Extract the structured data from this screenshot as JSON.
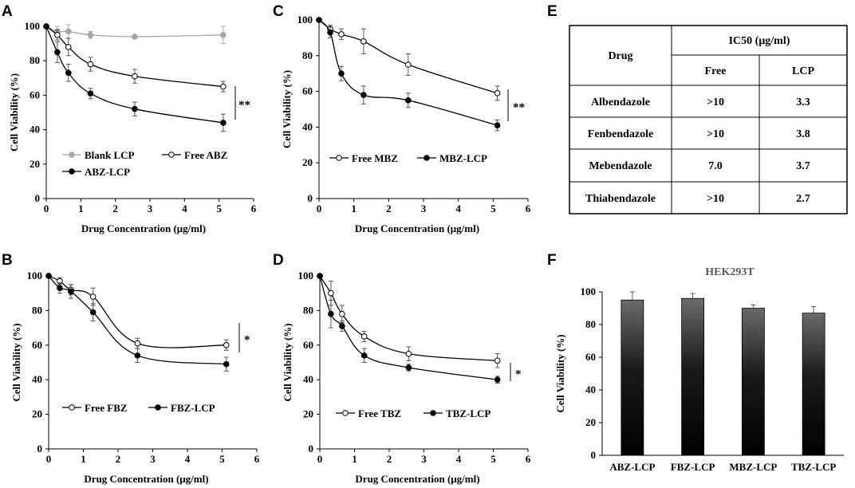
{
  "panel_letters": {
    "A": "A",
    "B": "B",
    "C": "C",
    "D": "D",
    "E": "E",
    "F": "F"
  },
  "colors": {
    "free": "#ffffff",
    "lcp": "#000000",
    "blank": "#a6a6a6",
    "axis": "#000000",
    "table_border": "#000000"
  },
  "chart_data": [
    {
      "id": "A",
      "type": "line",
      "xlabel": "Drug Concentration  (μg/ml)",
      "ylabel": "Cell Viability  (%)",
      "xlim": [
        0,
        6
      ],
      "ylim": [
        0,
        100
      ],
      "xticks": [
        "0",
        "1",
        "2",
        "3",
        "4",
        "5",
        "6"
      ],
      "yticks": [
        "0",
        "20",
        "40",
        "60",
        "80",
        "100"
      ],
      "series": [
        {
          "name": "Blank LCP",
          "style": "blank",
          "x": [
            0,
            0.32,
            0.64,
            1.28,
            2.56,
            5.12
          ],
          "values": [
            100,
            97,
            97,
            95,
            94,
            95
          ],
          "errors": [
            0,
            3,
            4,
            2,
            1,
            5
          ]
        },
        {
          "name": "Free ABZ",
          "style": "free",
          "x": [
            0,
            0.32,
            0.64,
            1.28,
            2.56,
            5.12
          ],
          "values": [
            100,
            95,
            88,
            78,
            71,
            65
          ],
          "errors": [
            0,
            3,
            5,
            4,
            4,
            3
          ]
        },
        {
          "name": "ABZ-LCP",
          "style": "lcp",
          "x": [
            0,
            0.32,
            0.64,
            1.28,
            2.56,
            5.12
          ],
          "values": [
            100,
            85,
            73,
            61,
            52,
            44
          ],
          "errors": [
            0,
            6,
            5,
            3,
            4,
            5
          ]
        }
      ],
      "legend": {
        "items": [
          "Blank LCP",
          "Free ABZ",
          "ABZ-LCP"
        ]
      },
      "significance": "**"
    },
    {
      "id": "B",
      "type": "line",
      "xlabel": "Drug Concentration  (μg/ml)",
      "ylabel": "Cell Viability  (%)",
      "xlim": [
        0,
        6
      ],
      "ylim": [
        0,
        100
      ],
      "xticks": [
        "0",
        "1",
        "2",
        "3",
        "4",
        "5",
        "6"
      ],
      "yticks": [
        "0",
        "20",
        "40",
        "60",
        "80",
        "100"
      ],
      "series": [
        {
          "name": "Free FBZ",
          "style": "free",
          "x": [
            0,
            0.32,
            0.64,
            1.28,
            2.56,
            5.12
          ],
          "values": [
            100,
            97,
            92,
            88,
            61,
            60
          ],
          "errors": [
            0,
            2,
            3,
            5,
            3,
            3
          ]
        },
        {
          "name": "FBZ-LCP",
          "style": "lcp",
          "x": [
            0,
            0.32,
            0.64,
            1.28,
            2.56,
            5.12
          ],
          "values": [
            100,
            93,
            91,
            79,
            54,
            49
          ],
          "errors": [
            0,
            3,
            4,
            5,
            4,
            4
          ]
        }
      ],
      "legend": {
        "items": [
          "Free FBZ",
          "FBZ-LCP"
        ]
      },
      "significance": "*"
    },
    {
      "id": "C",
      "type": "line",
      "xlabel": "Drug Concentration  (μg/ml)",
      "ylabel": "Cell Viability  (%)",
      "xlim": [
        0,
        6
      ],
      "ylim": [
        0,
        100
      ],
      "xticks": [
        "0",
        "1",
        "2",
        "3",
        "4",
        "5",
        "6"
      ],
      "yticks": [
        "0",
        "20",
        "40",
        "60",
        "80",
        "100"
      ],
      "series": [
        {
          "name": "Free MBZ",
          "style": "free",
          "x": [
            0,
            0.32,
            0.64,
            1.28,
            2.56,
            5.12
          ],
          "values": [
            100,
            95,
            92,
            88,
            75,
            59
          ],
          "errors": [
            0,
            2,
            3,
            7,
            6,
            4
          ]
        },
        {
          "name": "MBZ-LCP",
          "style": "lcp",
          "x": [
            0,
            0.32,
            0.64,
            1.28,
            2.56,
            5.12
          ],
          "values": [
            100,
            93,
            70,
            58,
            55,
            41
          ],
          "errors": [
            0,
            3,
            4,
            5,
            4,
            3
          ]
        }
      ],
      "legend": {
        "items": [
          "Free MBZ",
          "MBZ-LCP"
        ]
      },
      "significance": "**"
    },
    {
      "id": "D",
      "type": "line",
      "xlabel": "Drug Concentration  (μg/ml)",
      "ylabel": "Cell Viability  (%)",
      "xlim": [
        0,
        6
      ],
      "ylim": [
        0,
        100
      ],
      "xticks": [
        "0",
        "1",
        "2",
        "3",
        "4",
        "5",
        "6"
      ],
      "yticks": [
        "0",
        "20",
        "40",
        "60",
        "80",
        "100"
      ],
      "series": [
        {
          "name": "Free TBZ",
          "style": "free",
          "x": [
            0,
            0.32,
            0.64,
            1.28,
            2.56,
            5.12
          ],
          "values": [
            100,
            90,
            78,
            65,
            55,
            51
          ],
          "errors": [
            0,
            7,
            5,
            3,
            4,
            4
          ]
        },
        {
          "name": "TBZ-LCP",
          "style": "lcp",
          "x": [
            0,
            0.32,
            0.64,
            1.28,
            2.56,
            5.12
          ],
          "values": [
            100,
            78,
            71,
            54,
            47,
            40
          ],
          "errors": [
            0,
            8,
            3,
            4,
            2,
            2
          ]
        }
      ],
      "legend": {
        "items": [
          "Free TBZ",
          "TBZ-LCP"
        ]
      },
      "significance": "*"
    },
    {
      "id": "E",
      "type": "table",
      "headers": {
        "drug": "Drug",
        "ic50": "IC50 (μg/ml)",
        "free": "Free",
        "lcp": "LCP"
      },
      "rows": [
        {
          "drug": "Albendazole",
          "free": ">10",
          "lcp": "3.3"
        },
        {
          "drug": "Fenbendazole",
          "free": ">10",
          "lcp": "3.8"
        },
        {
          "drug": "Mebendazole",
          "free": "7.0",
          "lcp": "3.7"
        },
        {
          "drug": "Thiabendazole",
          "free": ">10",
          "lcp": "2.7"
        }
      ]
    },
    {
      "id": "F",
      "type": "bar",
      "title": "HEK293T",
      "xlabel": "",
      "ylabel": "Cell Viability  (%)",
      "ylim": [
        0,
        100
      ],
      "yticks": [
        "0",
        "20",
        "40",
        "60",
        "80",
        "100"
      ],
      "categories": [
        "ABZ-LCP",
        "FBZ-LCP",
        "MBZ-LCP",
        "TBZ-LCP"
      ],
      "values": [
        95,
        96,
        90,
        87
      ],
      "errors": [
        5,
        3,
        2,
        4
      ]
    }
  ]
}
